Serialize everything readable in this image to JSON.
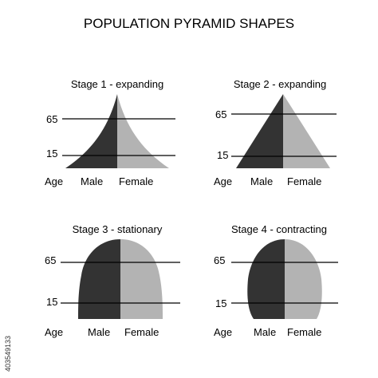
{
  "title": "POPULATION PYRAMID SHAPES",
  "colors": {
    "male": "#333333",
    "female": "#b3b3b3",
    "line": "#000000"
  },
  "common_labels": {
    "age": "Age",
    "male": "Male",
    "female": "Female"
  },
  "panels": [
    {
      "name": "stage-1",
      "title": "Stage 1 - expanding",
      "upper_age": "65",
      "lower_age": "15"
    },
    {
      "name": "stage-2",
      "title": "Stage 2 - expanding",
      "upper_age": "65",
      "lower_age": "15"
    },
    {
      "name": "stage-3",
      "title": "Stage 3 - stationary",
      "upper_age": "65",
      "lower_age": "15"
    },
    {
      "name": "stage-4",
      "title": "Stage 4 - contracting",
      "upper_age": "65",
      "lower_age": "15"
    }
  ],
  "watermark": {
    "id_text": "403549133"
  }
}
